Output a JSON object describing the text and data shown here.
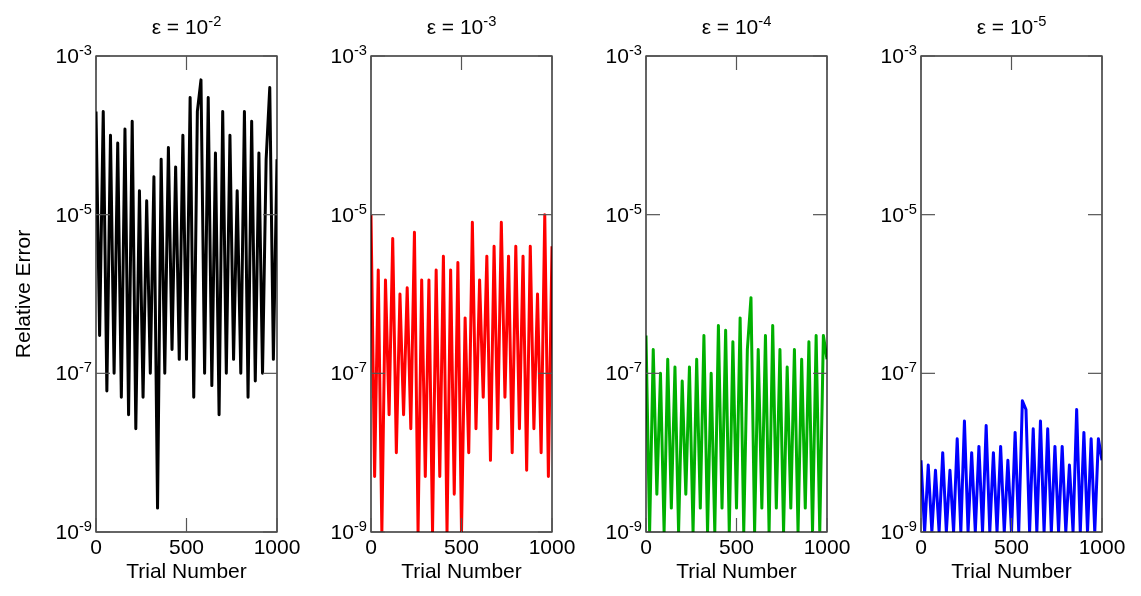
{
  "chart_data": [
    {
      "type": "line",
      "title": "ε = 10$^{-2}$",
      "xlabel": "Trial Number",
      "ylabel": "Relative Error",
      "log": "y",
      "grid": false,
      "xlim": [
        0,
        1000
      ],
      "xticks": [
        0,
        500,
        1000
      ],
      "ylim": [
        1e-09,
        0.001
      ],
      "yticks": [
        {
          "value": 1e-09,
          "label": "10$^{-9}$"
        },
        {
          "value": 1e-07,
          "label": "10$^{-7}$"
        },
        {
          "value": 1e-05,
          "label": "10$^{-5}$"
        },
        {
          "value": 0.001,
          "label": "10$^{-3}$"
        }
      ],
      "x": [
        0,
        20,
        40,
        60,
        80,
        100,
        120,
        140,
        160,
        180,
        200,
        220,
        240,
        260,
        280,
        300,
        320,
        340,
        360,
        380,
        400,
        420,
        440,
        460,
        480,
        500,
        520,
        540,
        560,
        580,
        600,
        620,
        640,
        660,
        680,
        700,
        720,
        740,
        760,
        780,
        800,
        820,
        840,
        860,
        880,
        900,
        920,
        940,
        960,
        980,
        1000
      ],
      "series": [
        {
          "color": "#000000",
          "values": [
            0.0002,
            3e-07,
            0.0002,
            6e-08,
            0.0001,
            1e-07,
            8e-05,
            5e-08,
            0.00012,
            3e-08,
            0.00015,
            2e-08,
            2e-05,
            5e-08,
            1.5e-05,
            1e-07,
            3e-05,
            2e-09,
            5e-05,
            1e-07,
            7e-05,
            2e-07,
            4e-05,
            1.5e-07,
            0.0001,
            1.5e-07,
            0.0003,
            5e-08,
            0.0002,
            0.0005,
            1e-07,
            0.0003,
            7e-08,
            6e-05,
            3e-08,
            0.0002,
            1e-07,
            0.0001,
            1.5e-07,
            2e-05,
            1e-07,
            0.0002,
            5e-08,
            0.00015,
            8e-08,
            6e-05,
            1e-07,
            5e-05,
            0.0004,
            1.5e-07,
            5e-05
          ]
        }
      ]
    },
    {
      "type": "line",
      "title": "ε = 10$^{-3}$",
      "xlabel": "Trial Number",
      "log": "y",
      "grid": false,
      "xlim": [
        0,
        1000
      ],
      "xticks": [
        0,
        500,
        1000
      ],
      "ylim": [
        1e-09,
        0.001
      ],
      "yticks": [
        {
          "value": 1e-09,
          "label": "10$^{-9}$"
        },
        {
          "value": 1e-07,
          "label": "10$^{-7}$"
        },
        {
          "value": 1e-05,
          "label": "10$^{-5}$"
        },
        {
          "value": 0.001,
          "label": "10$^{-3}$"
        }
      ],
      "x": [
        0,
        20,
        40,
        60,
        80,
        100,
        120,
        140,
        160,
        180,
        200,
        220,
        240,
        260,
        280,
        300,
        320,
        340,
        360,
        380,
        400,
        420,
        440,
        460,
        480,
        500,
        520,
        540,
        560,
        580,
        600,
        620,
        640,
        660,
        680,
        700,
        720,
        740,
        760,
        780,
        800,
        820,
        840,
        860,
        880,
        900,
        920,
        940,
        960,
        980,
        1000
      ],
      "series": [
        {
          "color": "#ff0000",
          "values": [
            1e-05,
            5e-09,
            2e-06,
            1e-09,
            1.5e-06,
            3e-08,
            5e-06,
            1e-08,
            1e-06,
            3e-08,
            1.2e-06,
            2e-08,
            6e-06,
            1e-09,
            1.5e-06,
            5e-09,
            1.5e-06,
            1e-09,
            2e-06,
            5e-09,
            3e-06,
            1e-09,
            2e-06,
            3e-09,
            2.5e-06,
            1e-09,
            5e-07,
            1e-08,
            8e-06,
            2e-08,
            1.5e-06,
            5e-08,
            3e-06,
            8e-09,
            4e-06,
            2e-08,
            8e-06,
            5e-08,
            3e-06,
            1e-08,
            4e-06,
            2e-08,
            3e-06,
            6e-09,
            4e-06,
            2e-08,
            1e-06,
            1e-08,
            1e-05,
            5e-09,
            4e-06
          ]
        }
      ]
    },
    {
      "type": "line",
      "title": "ε = 10$^{-4}$",
      "xlabel": "Trial Number",
      "log": "y",
      "grid": false,
      "xlim": [
        0,
        1000
      ],
      "xticks": [
        0,
        500,
        1000
      ],
      "ylim": [
        1e-09,
        0.001
      ],
      "yticks": [
        {
          "value": 1e-09,
          "label": "10$^{-9}$"
        },
        {
          "value": 1e-07,
          "label": "10$^{-7}$"
        },
        {
          "value": 1e-05,
          "label": "10$^{-5}$"
        },
        {
          "value": 0.001,
          "label": "10$^{-3}$"
        }
      ],
      "x": [
        0,
        20,
        40,
        60,
        80,
        100,
        120,
        140,
        160,
        180,
        200,
        220,
        240,
        260,
        280,
        300,
        320,
        340,
        360,
        380,
        400,
        420,
        440,
        460,
        480,
        500,
        520,
        540,
        560,
        580,
        600,
        620,
        640,
        660,
        680,
        700,
        720,
        740,
        760,
        780,
        800,
        820,
        840,
        860,
        880,
        900,
        920,
        940,
        960,
        980,
        1000
      ],
      "series": [
        {
          "color": "#00b000",
          "values": [
            3e-07,
            1e-09,
            2e-07,
            3e-09,
            1e-07,
            1e-09,
            1.5e-07,
            2e-09,
            1.2e-07,
            1e-09,
            8e-08,
            3e-09,
            1.2e-07,
            1e-09,
            1.5e-07,
            2e-09,
            3e-07,
            1e-09,
            1e-07,
            1e-09,
            4e-07,
            2e-09,
            3.5e-07,
            1e-09,
            2.5e-07,
            2e-09,
            5e-07,
            1e-09,
            2e-07,
            9e-07,
            1e-09,
            2e-07,
            2e-09,
            3e-07,
            1e-09,
            4e-07,
            2e-09,
            2e-07,
            1e-09,
            1.2e-07,
            2e-09,
            2e-07,
            1e-09,
            1.5e-07,
            2e-09,
            2.5e-07,
            1e-09,
            3e-07,
            1e-09,
            3e-07,
            1.5e-07
          ]
        }
      ]
    },
    {
      "type": "line",
      "title": "ε = 10$^{-5}$",
      "xlabel": "Trial Number",
      "log": "y",
      "grid": false,
      "xlim": [
        0,
        1000
      ],
      "xticks": [
        0,
        500,
        1000
      ],
      "ylim": [
        1e-09,
        0.001
      ],
      "yticks": [
        {
          "value": 1e-09,
          "label": "10$^{-9}$"
        },
        {
          "value": 1e-07,
          "label": "10$^{-7}$"
        },
        {
          "value": 1e-05,
          "label": "10$^{-5}$"
        },
        {
          "value": 0.001,
          "label": "10$^{-3}$"
        }
      ],
      "x": [
        0,
        20,
        40,
        60,
        80,
        100,
        120,
        140,
        160,
        180,
        200,
        220,
        240,
        260,
        280,
        300,
        320,
        340,
        360,
        380,
        400,
        420,
        440,
        460,
        480,
        500,
        520,
        540,
        560,
        580,
        600,
        620,
        640,
        660,
        680,
        700,
        720,
        740,
        760,
        780,
        800,
        820,
        840,
        860,
        880,
        900,
        920,
        940,
        960,
        980,
        1000
      ],
      "series": [
        {
          "color": "#0000ff",
          "values": [
            8e-09,
            1e-09,
            7e-09,
            1e-09,
            6e-09,
            1e-09,
            1e-08,
            1e-09,
            6e-09,
            1e-09,
            1.5e-08,
            1e-09,
            2.5e-08,
            1e-09,
            1e-08,
            1e-09,
            1.2e-08,
            1e-09,
            2.2e-08,
            1e-09,
            1e-08,
            1e-09,
            1.2e-08,
            1e-09,
            8e-09,
            1e-09,
            1.8e-08,
            1e-09,
            4.5e-08,
            3.5e-08,
            1e-09,
            2e-08,
            1e-09,
            2.5e-08,
            1e-09,
            2e-08,
            1e-09,
            1.2e-08,
            1e-09,
            1.2e-08,
            1e-09,
            7e-09,
            1e-09,
            3.5e-08,
            1e-09,
            1.8e-08,
            1e-09,
            1.5e-08,
            1e-09,
            1.5e-08,
            8e-09
          ]
        }
      ]
    }
  ]
}
